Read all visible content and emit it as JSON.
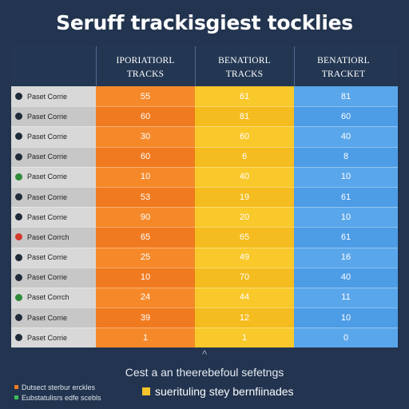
{
  "chart_data": {
    "type": "table",
    "title": "Seruff trackisgiest tocklies",
    "columns": [
      {
        "name": "IPORIATIORL TRACKS",
        "line1": "IPORIATIORL",
        "line2": "TRACKS",
        "color": "#f5892a"
      },
      {
        "name": "BENATIORL TRACKS",
        "line1": "BENATIORL",
        "line2": "TRACKS",
        "color": "#f9c82a"
      },
      {
        "name": "BENATIORL TRACKET",
        "line1": "BENATIORL",
        "line2": "TRACKET",
        "color": "#5aa6ea"
      }
    ],
    "rows": [
      {
        "label": "Paset Corrie",
        "dot": "#1f2b38",
        "values": [
          55,
          61,
          81
        ]
      },
      {
        "label": "Paset Corrie",
        "dot": "#1f2b38",
        "values": [
          60,
          81,
          60
        ]
      },
      {
        "label": "Paset Corrie",
        "dot": "#1f2b38",
        "values": [
          30,
          60,
          40
        ]
      },
      {
        "label": "Paset Corrie",
        "dot": "#1f2b38",
        "values": [
          60,
          6,
          8
        ]
      },
      {
        "label": "Paset Corrie",
        "dot": "#2e8b3a",
        "values": [
          10,
          40,
          10
        ]
      },
      {
        "label": "Paset Corrie",
        "dot": "#1f2b38",
        "values": [
          53,
          19,
          61
        ]
      },
      {
        "label": "Paset Corrie",
        "dot": "#1f2b38",
        "values": [
          90,
          20,
          10
        ]
      },
      {
        "label": "Paset Corrch",
        "dot": "#d23a2c",
        "values": [
          65,
          65,
          61
        ]
      },
      {
        "label": "Paset Corrie",
        "dot": "#1f2b38",
        "values": [
          25,
          49,
          16
        ]
      },
      {
        "label": "Paset Corrie",
        "dot": "#1f2b38",
        "values": [
          10,
          70,
          40
        ]
      },
      {
        "label": "Paset Corrch",
        "dot": "#2e8b3a",
        "values": [
          24,
          44,
          11
        ]
      },
      {
        "label": "Paset Corrie",
        "dot": "#1f2b38",
        "values": [
          39,
          12,
          10
        ]
      },
      {
        "label": "Paset Corrie",
        "dot": "#1f2b38",
        "values": [
          1,
          1,
          0
        ]
      }
    ]
  },
  "footer": {
    "caret": "^",
    "note": "Cest a an theerebefoul sefetngs",
    "swatch_label": "suerituling stey bernfiinades",
    "legend": [
      {
        "label": "Dutsect sterbur erckles",
        "color": "#f07a1f"
      },
      {
        "label": "Eubstatulisrs edfe scebls",
        "color": "#3fbf5a"
      }
    ]
  }
}
